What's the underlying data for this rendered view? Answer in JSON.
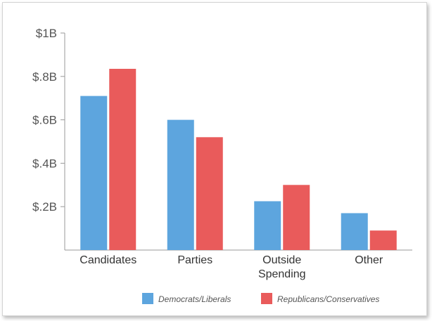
{
  "colors": {
    "dem": "#5da5de",
    "rep": "#e95b5b",
    "axis": "#9a9a9a"
  },
  "chart_data": {
    "type": "bar",
    "title": "",
    "xlabel": "",
    "ylabel": "",
    "categories": [
      "Candidates",
      "Parties",
      "Outside Spending",
      "Other"
    ],
    "category_label_lines": [
      [
        "Candidates"
      ],
      [
        "Parties"
      ],
      [
        "Outside",
        "Spending"
      ],
      [
        "Other"
      ]
    ],
    "series": [
      {
        "name": "Democrats/Liberals",
        "values": [
          0.71,
          0.6,
          0.225,
          0.17
        ]
      },
      {
        "name": "Republicans/Conservatives",
        "values": [
          0.835,
          0.52,
          0.3,
          0.09
        ]
      }
    ],
    "ylim": [
      0,
      1.0
    ],
    "yticks": [
      0.2,
      0.4,
      0.6,
      0.8,
      1.0
    ],
    "ytick_labels": [
      "$.2B",
      "$.4B",
      "$.6B",
      "$.8B",
      "$1B"
    ],
    "grid": false,
    "legend_position": "bottom-right"
  }
}
